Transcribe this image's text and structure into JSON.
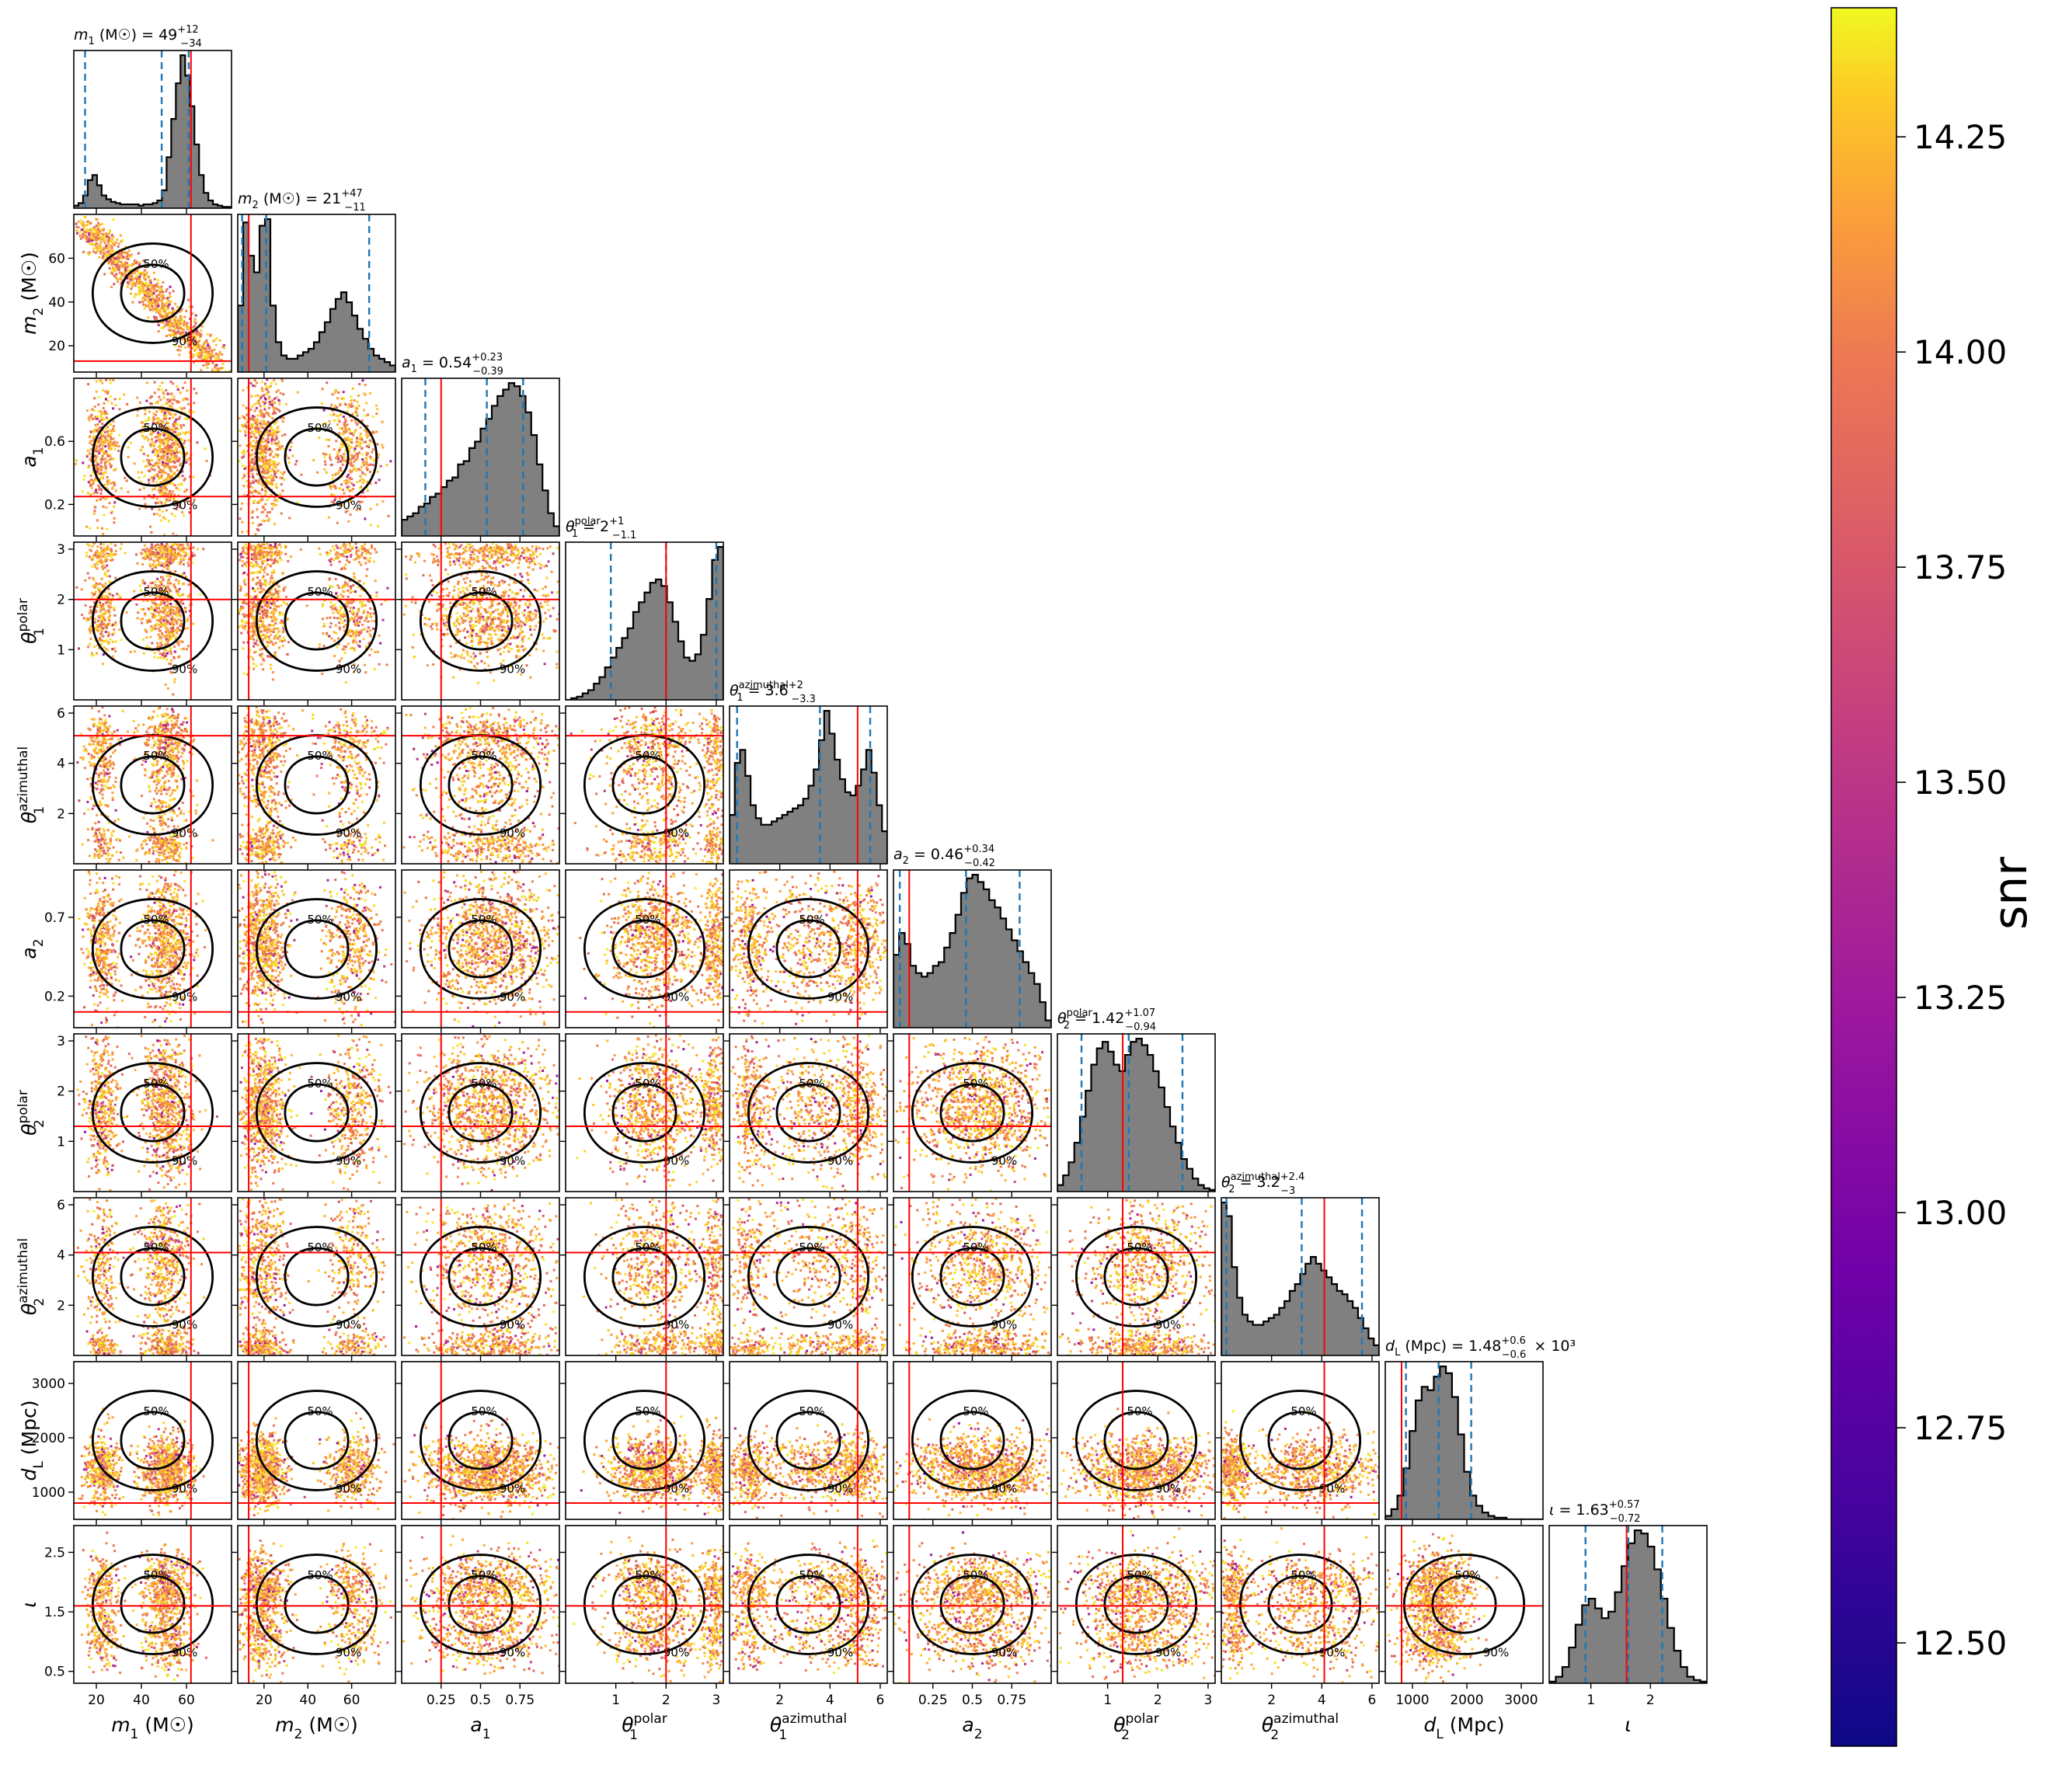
{
  "chart_data": {
    "type": "corner",
    "params": [
      {
        "key": "m1",
        "sym": "m",
        "sub": "1",
        "sup": "",
        "unit": "(M☉)",
        "median": 49,
        "plus": 12,
        "minus": 34,
        "sci": "",
        "range": [
          10,
          80
        ],
        "ticks": [
          20,
          40,
          60
        ],
        "truth": 62,
        "hist": [
          2,
          4,
          10,
          22,
          26,
          18,
          10,
          7,
          5,
          4,
          3,
          3,
          3,
          3,
          2,
          3,
          3,
          4,
          6,
          14,
          40,
          70,
          98,
          120,
          104,
          80,
          50,
          26,
          12,
          6,
          3,
          2,
          1,
          1
        ]
      },
      {
        "key": "m2",
        "sym": "m",
        "sub": "2",
        "sup": "",
        "unit": "(M☉)",
        "median": 21,
        "plus": 47,
        "minus": 11,
        "sci": "",
        "range": [
          8,
          80
        ],
        "ticks": [
          20,
          40,
          60
        ],
        "truth": 13,
        "hist": [
          40,
          90,
          70,
          60,
          88,
          92,
          40,
          18,
          10,
          8,
          8,
          10,
          12,
          14,
          18,
          24,
          30,
          38,
          44,
          48,
          42,
          34,
          26,
          20,
          14,
          10,
          8,
          6,
          4
        ]
      },
      {
        "key": "a1",
        "sym": "a",
        "sub": "1",
        "sup": "",
        "unit": "",
        "median": 0.54,
        "plus": 0.23,
        "minus": 0.39,
        "sci": "",
        "range": [
          0.0,
          1.0
        ],
        "ticks": [
          0.25,
          0.5,
          0.75
        ],
        "truth": 0.25,
        "hist": [
          10,
          12,
          14,
          18,
          20,
          24,
          26,
          30,
          34,
          36,
          44,
          46,
          54,
          58,
          66,
          72,
          80,
          86,
          90,
          94,
          92,
          86,
          76,
          62,
          44,
          28,
          14,
          6
        ]
      },
      {
        "key": "th1p",
        "sym": "θ",
        "sub": "1",
        "sup": "polar",
        "unit": "",
        "median": 2.0,
        "plus": 1.0,
        "minus": 1.1,
        "sci": "",
        "range": [
          0.0,
          3.14
        ],
        "ticks": [
          1,
          2,
          3
        ],
        "truth": 2.0,
        "hist": [
          0,
          1,
          2,
          4,
          6,
          10,
          14,
          20,
          26,
          32,
          38,
          44,
          54,
          60,
          66,
          72,
          74,
          70,
          60,
          48,
          36,
          26,
          24,
          28,
          40,
          62,
          86,
          94
        ]
      },
      {
        "key": "th1a",
        "sym": "θ",
        "sub": "1",
        "sup": "azimuthal",
        "unit": "",
        "median": 3.6,
        "plus": 2.0,
        "minus": 3.3,
        "sci": "",
        "range": [
          0.0,
          6.28
        ],
        "ticks": [
          2,
          4,
          6
        ],
        "truth": 5.1,
        "hist": [
          30,
          62,
          70,
          54,
          36,
          28,
          24,
          24,
          26,
          28,
          30,
          32,
          34,
          36,
          40,
          48,
          58,
          76,
          94,
          80,
          64,
          52,
          44,
          42,
          48,
          58,
          70,
          56,
          36,
          20
        ]
      },
      {
        "key": "a2",
        "sym": "a",
        "sub": "2",
        "sup": "",
        "unit": "",
        "median": 0.46,
        "plus": 0.34,
        "minus": 0.42,
        "sci": "",
        "range": [
          0.0,
          1.0
        ],
        "ticks": [
          0.25,
          0.5,
          0.75
        ],
        "truth": 0.1,
        "hist": [
          40,
          52,
          46,
          34,
          30,
          28,
          30,
          34,
          36,
          44,
          52,
          62,
          74,
          82,
          84,
          80,
          76,
          70,
          66,
          60,
          54,
          48,
          42,
          36,
          30,
          24,
          14,
          4
        ]
      },
      {
        "key": "th2p",
        "sym": "θ",
        "sub": "2",
        "sup": "polar",
        "unit": "",
        "median": 1.42,
        "plus": 1.07,
        "minus": 0.94,
        "sci": "",
        "range": [
          0.0,
          3.14
        ],
        "ticks": [
          1,
          2,
          3
        ],
        "truth": 1.3,
        "hist": [
          4,
          10,
          18,
          30,
          46,
          62,
          78,
          88,
          92,
          86,
          78,
          74,
          84,
          92,
          94,
          90,
          84,
          74,
          64,
          52,
          40,
          30,
          20,
          14,
          8,
          4,
          2,
          1
        ]
      },
      {
        "key": "th2a",
        "sym": "θ",
        "sub": "2",
        "sup": "azimuthal",
        "unit": "",
        "median": 3.2,
        "plus": 2.4,
        "minus": 3.0,
        "sci": "",
        "range": [
          0.0,
          6.28
        ],
        "ticks": [
          2,
          4,
          6
        ],
        "truth": 4.1,
        "hist": [
          90,
          82,
          52,
          34,
          24,
          20,
          18,
          18,
          20,
          22,
          24,
          28,
          32,
          38,
          42,
          48,
          54,
          58,
          54,
          50,
          46,
          42,
          38,
          36,
          32,
          28,
          22,
          16,
          10,
          6
        ]
      },
      {
        "key": "dL",
        "sym": "d",
        "sub": "L",
        "sup": "",
        "unit": "(Mpc)",
        "median": 1.48,
        "plus": 0.6,
        "minus": 0.6,
        "sci": "× 10³",
        "range": [
          500,
          3400
        ],
        "ticks": [
          1000,
          2000,
          3000
        ],
        "truth": 800,
        "hist": [
          2,
          6,
          14,
          30,
          52,
          70,
          78,
          76,
          84,
          90,
          86,
          72,
          50,
          28,
          14,
          8,
          4,
          2,
          1,
          1,
          0,
          0,
          0,
          0,
          0,
          0
        ]
      },
      {
        "key": "iota",
        "sym": "ι",
        "sub": "",
        "sup": "",
        "unit": "",
        "median": 1.63,
        "plus": 0.57,
        "minus": 0.72,
        "sci": "",
        "range": [
          0.3,
          2.95
        ],
        "ticks": [
          1,
          2
        ],
        "truth": 1.6,
        "hist": [
          1,
          4,
          10,
          22,
          36,
          48,
          52,
          46,
          40,
          44,
          56,
          72,
          86,
          94,
          92,
          84,
          70,
          52,
          34,
          20,
          10,
          4,
          2,
          1
        ]
      }
    ],
    "pair_ticks": {
      "m2": [
        20,
        40,
        60
      ],
      "a1": [
        0.2,
        0.6
      ],
      "th1p": [
        1,
        2,
        3
      ],
      "th1a": [
        2,
        4,
        6
      ],
      "a2": [
        0.2,
        0.7
      ],
      "th2p": [
        1,
        2,
        3
      ],
      "th2a": [
        2,
        4,
        6
      ],
      "dL": [
        1000,
        2000,
        3000
      ],
      "iota": [
        0.5,
        1.5,
        2.5
      ]
    },
    "contour_labels": [
      "50%",
      "90%"
    ],
    "colorbar": {
      "label": "snr",
      "min": 12.38,
      "max": 14.4,
      "ticks": [
        12.5,
        12.75,
        13.0,
        13.25,
        13.5,
        13.75,
        14.0,
        14.25
      ],
      "tick_labels": [
        "12.50",
        "12.75",
        "13.00",
        "13.25",
        "13.50",
        "13.75",
        "14.00",
        "14.25"
      ],
      "colormap": "plasma"
    },
    "colors": {
      "truth": "#ff0000",
      "quantile": "#1f77b4",
      "hist_fill": "#808080",
      "contour": "#000000"
    }
  }
}
